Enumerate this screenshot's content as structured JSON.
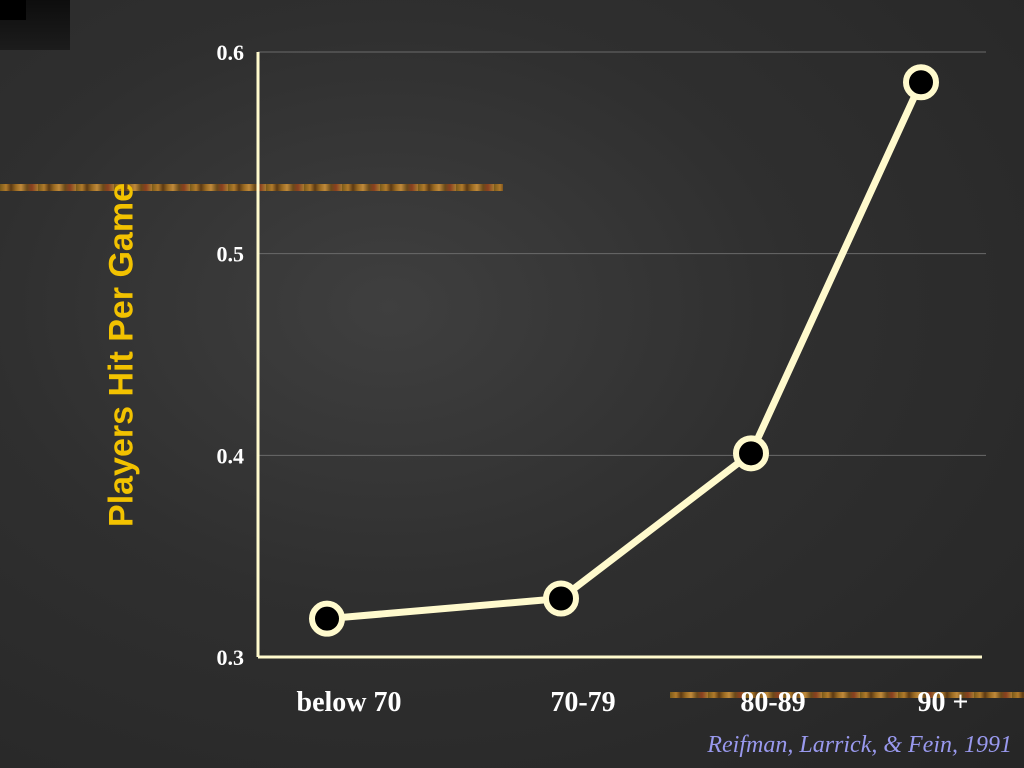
{
  "chart_data": {
    "type": "line",
    "categories": [
      "below 70",
      "70-79",
      "80-89",
      "90 +"
    ],
    "values": [
      0.319,
      0.329,
      0.401,
      0.585
    ],
    "ylabel": "Players Hit Per Game",
    "xlabel": "",
    "ylim": [
      0.3,
      0.6
    ],
    "yticks": [
      "0.3",
      "0.4",
      "0.5",
      "0.6"
    ],
    "grid": true,
    "colors": {
      "line": "#fffacd",
      "marker_fill": "#000000",
      "ylabel": "#f2c200",
      "ticks": "#ffffff",
      "citation": "#9999ee"
    }
  },
  "citation": "Reifman, Larrick, & Fein, 1991"
}
